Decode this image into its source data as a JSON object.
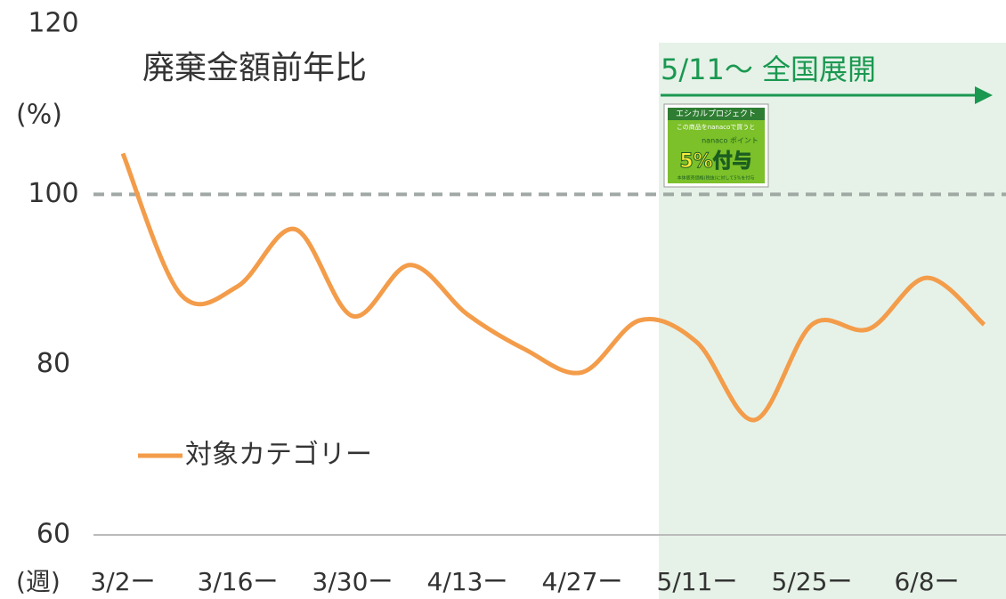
{
  "chart_data": {
    "type": "line",
    "title": "廃棄金額前年比",
    "y_unit_label": "(%)",
    "x_unit_label": "(週)",
    "annotation": "5/11～ 全国展開",
    "badge": {
      "header": "エシカルプロジェクト",
      "line1": "この商品をnanacoで買うと",
      "line2": "nanaco ポイント",
      "big": "5%付与",
      "note": "本体販売価格(税抜)に対して5%を付与"
    },
    "categories": [
      "3/2ー",
      null,
      "3/16ー",
      null,
      "3/30ー",
      null,
      "4/13ー",
      null,
      "4/27ー",
      null,
      "5/11ー",
      null,
      "5/25ー",
      null,
      "6/8ー",
      null
    ],
    "series": [
      {
        "name": "対象カテゴリー",
        "color": "#f39c4a",
        "values": [
          104.8,
          88.3,
          89.2,
          95.9,
          85.7,
          91.7,
          85.9,
          81.8,
          79.1,
          85.2,
          82.6,
          73.5,
          84.7,
          84.2,
          90.2,
          84.7
        ]
      }
    ],
    "reference_line": 100,
    "ylim": [
      60,
      120
    ],
    "yticks": [
      60,
      80,
      100,
      120
    ],
    "grid": false,
    "legend": "lower left"
  }
}
